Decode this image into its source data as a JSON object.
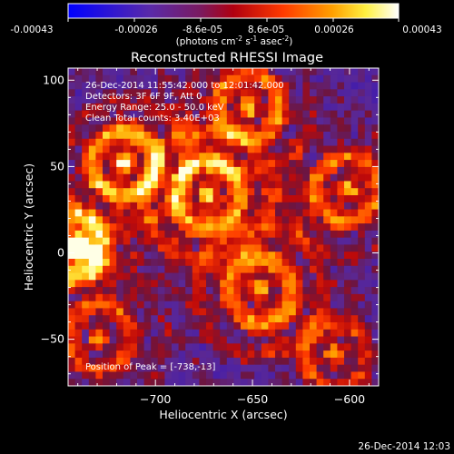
{
  "colorbar": {
    "ticks": [
      "-0.00043",
      "-0.00026",
      "-8.6e-05",
      "8.6e-05",
      "0.00026",
      "0.00043"
    ],
    "units_prefix": "(photons cm",
    "units_exp1": "-2",
    "units_mid": " s",
    "units_exp2": "-1",
    "units_mid2": " asec",
    "units_exp3": "-2",
    "units_suffix": ")"
  },
  "annotations": {
    "time_range": "26-Dec-2014 11:55:42.000 to 12:01:42.000",
    "detectors": "Detectors: 3F 6F 9F, Att 0",
    "energy": "Energy Range: 25.0 - 50.0 keV",
    "clean": "Clean  Total counts: 3.40E+03",
    "peak": "Position of Peak = [-738,-13]"
  },
  "footer_timestamp": "26-Dec-2014 12:03",
  "chart_data": {
    "type": "heatmap",
    "title": "Reconstructed RHESSI Image",
    "xlabel": "Heliocentric X (arcsec)",
    "ylabel": "Heliocentric Y (arcsec)",
    "xlim": [
      -745,
      -585
    ],
    "ylim": [
      -77,
      107
    ],
    "xticks": [
      -700,
      -650,
      -600
    ],
    "yticks": [
      -50,
      0,
      50,
      100
    ],
    "xtick_labels": [
      "−700",
      "−650",
      "−600"
    ],
    "ytick_labels": [
      "−50",
      "0",
      "50",
      "100"
    ],
    "colormap": "blue-purple-red-orange-yellow-white",
    "peak_position": [
      -738,
      -13
    ]
  }
}
